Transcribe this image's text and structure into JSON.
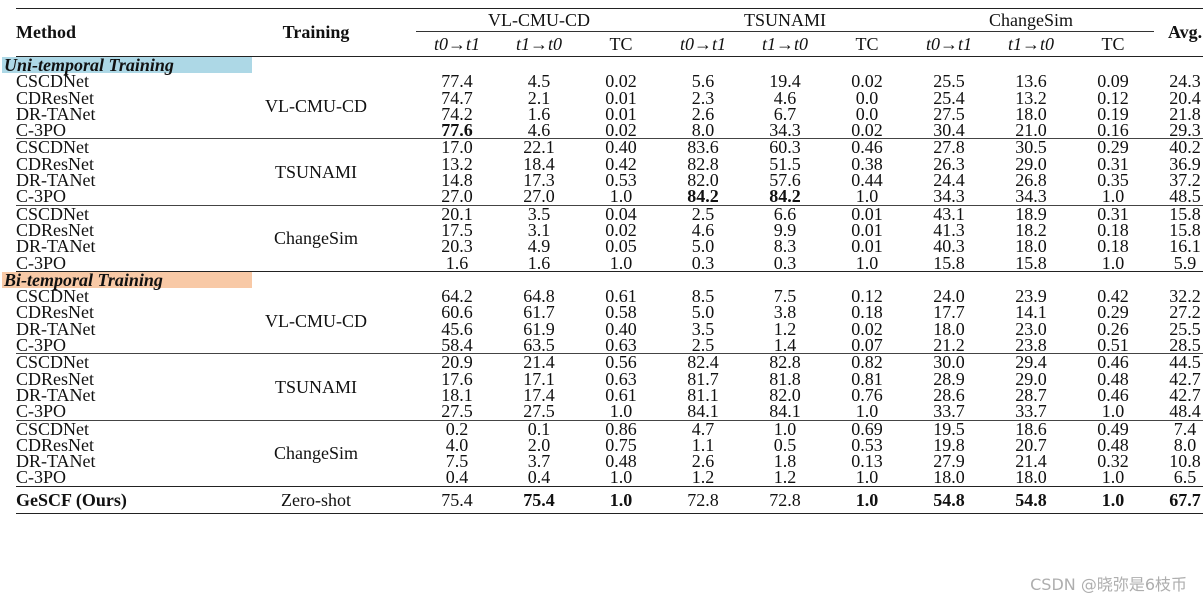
{
  "header": {
    "method": "Method",
    "training": "Training",
    "avg": "Avg.",
    "groups": [
      "VL-CMU-CD",
      "TSUNAMI",
      "ChangeSim"
    ],
    "subcols": [
      "t0→t1",
      "t1→t0",
      "TC"
    ]
  },
  "sections": [
    {
      "label": "Uni-temporal Training",
      "color": "#add8e6",
      "blocks": [
        {
          "training": "VL-CMU-CD",
          "rows": [
            {
              "method": "CSCDNet",
              "v": [
                "77.4",
                "4.5",
                "0.02",
                "5.6",
                "19.4",
                "0.02",
                "25.5",
                "13.6",
                "0.09",
                "24.3"
              ],
              "bold": []
            },
            {
              "method": "CDResNet",
              "v": [
                "74.7",
                "2.1",
                "0.01",
                "2.3",
                "4.6",
                "0.0",
                "25.4",
                "13.2",
                "0.12",
                "20.4"
              ],
              "bold": []
            },
            {
              "method": "DR-TANet",
              "v": [
                "74.2",
                "1.6",
                "0.01",
                "2.6",
                "6.7",
                "0.0",
                "27.5",
                "18.0",
                "0.19",
                "21.8"
              ],
              "bold": []
            },
            {
              "method": "C-3PO",
              "v": [
                "77.6",
                "4.6",
                "0.02",
                "8.0",
                "34.3",
                "0.02",
                "30.4",
                "21.0",
                "0.16",
                "29.3"
              ],
              "bold": [
                0
              ]
            }
          ]
        },
        {
          "training": "TSUNAMI",
          "rows": [
            {
              "method": "CSCDNet",
              "v": [
                "17.0",
                "22.1",
                "0.40",
                "83.6",
                "60.3",
                "0.46",
                "27.8",
                "30.5",
                "0.29",
                "40.2"
              ],
              "bold": []
            },
            {
              "method": "CDResNet",
              "v": [
                "13.2",
                "18.4",
                "0.42",
                "82.8",
                "51.5",
                "0.38",
                "26.3",
                "29.0",
                "0.31",
                "36.9"
              ],
              "bold": []
            },
            {
              "method": "DR-TANet",
              "v": [
                "14.8",
                "17.3",
                "0.53",
                "82.0",
                "57.6",
                "0.44",
                "24.4",
                "26.8",
                "0.35",
                "37.2"
              ],
              "bold": []
            },
            {
              "method": "C-3PO",
              "v": [
                "27.0",
                "27.0",
                "1.0",
                "84.2",
                "84.2",
                "1.0",
                "34.3",
                "34.3",
                "1.0",
                "48.5"
              ],
              "bold": [
                3,
                4
              ]
            }
          ]
        },
        {
          "training": "ChangeSim",
          "rows": [
            {
              "method": "CSCDNet",
              "v": [
                "20.1",
                "3.5",
                "0.04",
                "2.5",
                "6.6",
                "0.01",
                "43.1",
                "18.9",
                "0.31",
                "15.8"
              ],
              "bold": []
            },
            {
              "method": "CDResNet",
              "v": [
                "17.5",
                "3.1",
                "0.02",
                "4.6",
                "9.9",
                "0.01",
                "41.3",
                "18.2",
                "0.18",
                "15.8"
              ],
              "bold": []
            },
            {
              "method": "DR-TANet",
              "v": [
                "20.3",
                "4.9",
                "0.05",
                "5.0",
                "8.3",
                "0.01",
                "40.3",
                "18.0",
                "0.18",
                "16.1"
              ],
              "bold": []
            },
            {
              "method": "C-3PO",
              "v": [
                "1.6",
                "1.6",
                "1.0",
                "0.3",
                "0.3",
                "1.0",
                "15.8",
                "15.8",
                "1.0",
                "5.9"
              ],
              "bold": []
            }
          ]
        }
      ]
    },
    {
      "label": "Bi-temporal Training",
      "color": "#f8c9a6",
      "blocks": [
        {
          "training": "VL-CMU-CD",
          "rows": [
            {
              "method": "CSCDNet",
              "v": [
                "64.2",
                "64.8",
                "0.61",
                "8.5",
                "7.5",
                "0.12",
                "24.0",
                "23.9",
                "0.42",
                "32.2"
              ],
              "bold": []
            },
            {
              "method": "CDResNet",
              "v": [
                "60.6",
                "61.7",
                "0.58",
                "5.0",
                "3.8",
                "0.18",
                "17.7",
                "14.1",
                "0.29",
                "27.2"
              ],
              "bold": []
            },
            {
              "method": "DR-TANet",
              "v": [
                "45.6",
                "61.9",
                "0.40",
                "3.5",
                "1.2",
                "0.02",
                "18.0",
                "23.0",
                "0.26",
                "25.5"
              ],
              "bold": []
            },
            {
              "method": "C-3PO",
              "v": [
                "58.4",
                "63.5",
                "0.63",
                "2.5",
                "1.4",
                "0.07",
                "21.2",
                "23.8",
                "0.51",
                "28.5"
              ],
              "bold": []
            }
          ]
        },
        {
          "training": "TSUNAMI",
          "rows": [
            {
              "method": "CSCDNet",
              "v": [
                "20.9",
                "21.4",
                "0.56",
                "82.4",
                "82.8",
                "0.82",
                "30.0",
                "29.4",
                "0.46",
                "44.5"
              ],
              "bold": []
            },
            {
              "method": "CDResNet",
              "v": [
                "17.6",
                "17.1",
                "0.63",
                "81.7",
                "81.8",
                "0.81",
                "28.9",
                "29.0",
                "0.48",
                "42.7"
              ],
              "bold": []
            },
            {
              "method": "DR-TANet",
              "v": [
                "18.1",
                "17.4",
                "0.61",
                "81.1",
                "82.0",
                "0.76",
                "28.6",
                "28.7",
                "0.46",
                "42.7"
              ],
              "bold": []
            },
            {
              "method": "C-3PO",
              "v": [
                "27.5",
                "27.5",
                "1.0",
                "84.1",
                "84.1",
                "1.0",
                "33.7",
                "33.7",
                "1.0",
                "48.4"
              ],
              "bold": []
            }
          ]
        },
        {
          "training": "ChangeSim",
          "rows": [
            {
              "method": "CSCDNet",
              "v": [
                "0.2",
                "0.1",
                "0.86",
                "4.7",
                "1.0",
                "0.69",
                "19.5",
                "18.6",
                "0.49",
                "7.4"
              ],
              "bold": []
            },
            {
              "method": "CDResNet",
              "v": [
                "4.0",
                "2.0",
                "0.75",
                "1.1",
                "0.5",
                "0.53",
                "19.8",
                "20.7",
                "0.48",
                "8.0"
              ],
              "bold": []
            },
            {
              "method": "DR-TANet",
              "v": [
                "7.5",
                "3.7",
                "0.48",
                "2.6",
                "1.8",
                "0.13",
                "27.9",
                "21.4",
                "0.32",
                "10.8"
              ],
              "bold": []
            },
            {
              "method": "C-3PO",
              "v": [
                "0.4",
                "0.4",
                "1.0",
                "1.2",
                "1.2",
                "1.0",
                "18.0",
                "18.0",
                "1.0",
                "6.5"
              ],
              "bold": []
            }
          ]
        }
      ]
    }
  ],
  "final": {
    "method": "GeSCF (Ours)",
    "training": "Zero-shot",
    "v": [
      "75.4",
      "75.4",
      "1.0",
      "72.8",
      "72.8",
      "1.0",
      "54.8",
      "54.8",
      "1.0",
      "67.7"
    ],
    "bold": [
      1,
      2,
      5,
      6,
      7,
      8,
      9
    ]
  },
  "watermark": "CSDN @晓弥是6枝币"
}
